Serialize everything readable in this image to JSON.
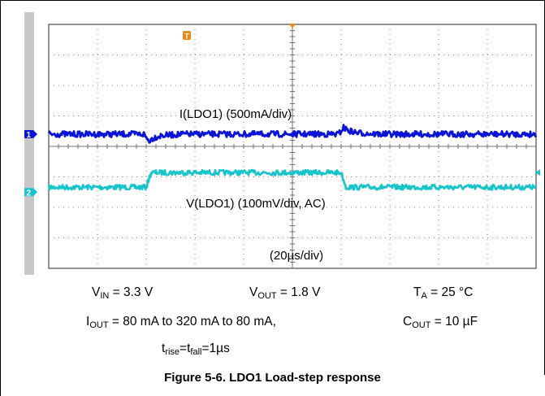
{
  "chart_data": {
    "type": "line",
    "title": "",
    "xlabel": "",
    "ylabel": "",
    "grid": true,
    "x_scale_label": "(20µs/div)",
    "x_unit": "µs",
    "xlim": [
      0,
      200
    ],
    "series": [
      {
        "name": "I(LDO1) (500mA/div)",
        "channel": "2",
        "color": "#17c4cc",
        "unit": "mA",
        "ylim": [
          -1250,
          2750
        ],
        "x": [
          0,
          40,
          42,
          120,
          122,
          200
        ],
        "values": [
          80,
          80,
          320,
          320,
          80,
          80
        ]
      },
      {
        "name": "V(LDO1) (100mV/div, AC)",
        "channel": "1",
        "color": "#0a14d6",
        "unit": "mV",
        "ylim": [
          -440,
          360
        ],
        "x": [
          0,
          39,
          41,
          43,
          46,
          55,
          119,
          121,
          123,
          126,
          135,
          200
        ],
        "values": [
          0,
          0,
          -22,
          -12,
          -5,
          0,
          0,
          22,
          12,
          5,
          0,
          0
        ]
      }
    ],
    "channel_markers": [
      "2",
      "1"
    ],
    "trigger_marker": "T",
    "colors": {
      "grid": "#8a8a8a",
      "left_strip": "#c8c8c8",
      "trigger_orange": "#e8891b"
    }
  },
  "conditions": {
    "vin": {
      "sym": "V",
      "sub": "IN",
      "rest": " = 3.3 V"
    },
    "vout": {
      "sym": "V",
      "sub": "OUT",
      "rest": " = 1.8 V"
    },
    "ta": {
      "sym": "T",
      "sub": "A",
      "rest": " = 25 °C"
    },
    "iout": {
      "sym": "I",
      "sub": "OUT",
      "rest": " = 80 mA to 320 mA to 80 mA,"
    },
    "cout": {
      "sym": "C",
      "sub": "OUT",
      "rest": " = 10 µF"
    },
    "trise": {
      "sym": "t",
      "sub": "rise",
      "mid": "=t",
      "sub2": "fall",
      "rest": "=1µs"
    }
  },
  "figure_title": "Figure 5-6. LDO1 Load-step response"
}
